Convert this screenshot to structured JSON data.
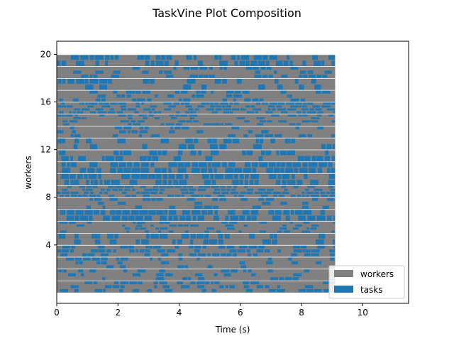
{
  "chart_data": {
    "type": "bar",
    "orientation": "horizontal-timeline",
    "title": "TaskVine Plot Composition",
    "xlabel": "Time (s)",
    "ylabel": "workers",
    "xlim": [
      0,
      11.5
    ],
    "ylim": [
      -0.9,
      21.1
    ],
    "xticks": [
      0,
      2,
      4,
      6,
      8,
      10
    ],
    "yticks": [
      4,
      8,
      12,
      16,
      20
    ],
    "grid": false,
    "legend_position": "lower-right",
    "colors": {
      "workers": "#808080",
      "tasks": "#1f77b4"
    },
    "series": [
      {
        "name": "workers",
        "worker_count": 20,
        "start": 0,
        "end": 9.1
      },
      {
        "name": "tasks",
        "task_duration_range_s": [
          0.1,
          0.3
        ],
        "time_range": [
          0,
          9.1
        ]
      }
    ]
  }
}
